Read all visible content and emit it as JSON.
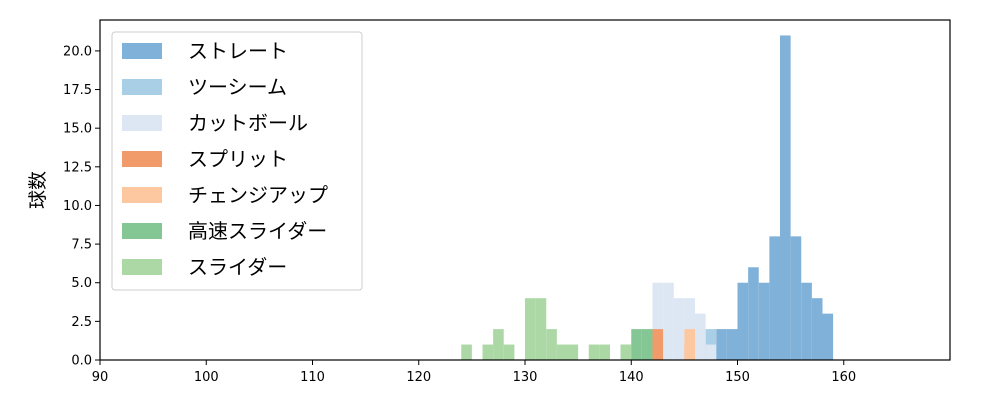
{
  "chart_data": {
    "type": "histogram",
    "xlabel": "",
    "ylabel": "球数",
    "xlim": [
      90,
      170
    ],
    "ylim": [
      0,
      22
    ],
    "xticks": [
      90,
      100,
      110,
      120,
      130,
      140,
      150,
      160
    ],
    "yticks": [
      "0.0",
      "2.5",
      "5.0",
      "7.5",
      "10.0",
      "12.5",
      "15.0",
      "17.5",
      "20.0"
    ],
    "bin_width": 1,
    "legend_position": "upper-left",
    "grid": false,
    "series": [
      {
        "name": "ストレート",
        "color": "#80b1d8",
        "bins": [
          [
            147,
            1
          ],
          [
            148,
            2
          ],
          [
            149,
            2
          ],
          [
            150,
            5
          ],
          [
            151,
            6
          ],
          [
            152,
            5
          ],
          [
            153,
            8
          ],
          [
            154,
            21
          ],
          [
            155,
            8
          ],
          [
            156,
            5
          ],
          [
            157,
            4
          ],
          [
            158,
            3
          ]
        ]
      },
      {
        "name": "ツーシーム",
        "color": "#a9cfe6",
        "bins": [
          [
            146,
            2
          ],
          [
            147,
            2
          ]
        ]
      },
      {
        "name": "カットボール",
        "color": "#dce7f3",
        "bins": [
          [
            142,
            5
          ],
          [
            143,
            5
          ],
          [
            144,
            4
          ],
          [
            145,
            4
          ],
          [
            146,
            3
          ],
          [
            147,
            1
          ]
        ]
      },
      {
        "name": "スプリット",
        "color": "#f19b6b",
        "bins": [
          [
            142,
            2
          ],
          [
            145,
            1
          ]
        ]
      },
      {
        "name": "チェンジアップ",
        "color": "#fdc79f",
        "bins": [
          [
            145,
            2
          ]
        ]
      },
      {
        "name": "高速スライダー",
        "color": "#84c795",
        "bins": [
          [
            139,
            1
          ],
          [
            140,
            2
          ],
          [
            141,
            2
          ]
        ]
      },
      {
        "name": "スライダー",
        "color": "#acd8a6",
        "bins": [
          [
            124,
            1
          ],
          [
            126,
            1
          ],
          [
            127,
            2
          ],
          [
            128,
            1
          ],
          [
            130,
            4
          ],
          [
            131,
            4
          ],
          [
            132,
            2
          ],
          [
            133,
            1
          ],
          [
            134,
            1
          ],
          [
            136,
            1
          ],
          [
            137,
            1
          ],
          [
            139,
            1
          ]
        ]
      }
    ]
  }
}
